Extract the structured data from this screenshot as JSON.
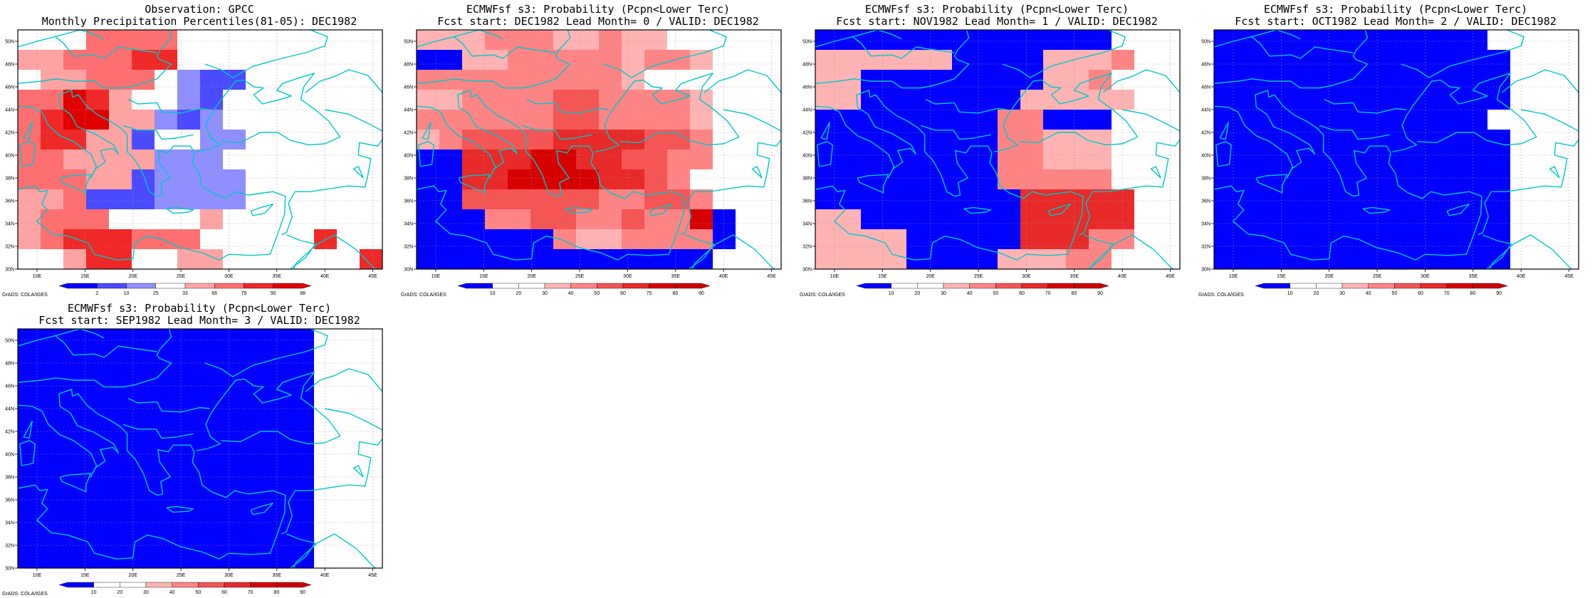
{
  "palette": {
    "obs": [
      "#0000ff",
      "#4a4aff",
      "#8f8fff",
      "#ffffff",
      "#ffa3a3",
      "#ff6f6f",
      "#f02828",
      "#e00000"
    ],
    "prob": [
      "#0000ff",
      "#ffffff",
      "#ffffff",
      "#ffb3b3",
      "#ff8585",
      "#f55555",
      "#e82a2a",
      "#d70000",
      "#cc0000"
    ],
    "coast": "#00c8c8"
  },
  "lon_labels": [
    "10E",
    "15E",
    "20E",
    "25E",
    "30E",
    "35E",
    "40E",
    "45E"
  ],
  "lat_labels": [
    "30N",
    "32N",
    "34N",
    "36N",
    "38N",
    "40N",
    "42N",
    "44N",
    "46N",
    "48N",
    "50N"
  ],
  "credit": "GrADS: COLA/IGES",
  "panels": [
    {
      "title1": "Observation: GPCC",
      "title2": "Monthly Precipitation Percentiles(81-05): DEC1982",
      "scale": "obs",
      "cb_labels": [
        "2",
        "10",
        "25",
        "33",
        "66",
        "75",
        "90",
        "98"
      ],
      "grid": [
        "33355553",
        "4455566",
        "3445553211",
        "557643321",
        "567744212",
        "5664413322",
        "554444222",
        "5554412222",
        "4451112222",
        "4555333343",
        "45666555333336",
        "3346633443333336"
      ]
    },
    {
      "title1": "ECMWFsf s3: Probability (Pcpn<Lower Terc)",
      "title2": "Fcst start: DEC1982  Lead Month= 0 / VALID: DEC1982",
      "scale": "prob",
      "cb_labels": [
        "10",
        "20",
        "30",
        "40",
        "50",
        "60",
        "70",
        "80",
        "90"
      ],
      "grid": [
        "33344433433",
        "0033444443443",
        "4444444443",
        "3344445544443",
        "4444445544443",
        "3455556666554",
        "0066677665544",
        "006677776654",
        "0055555544554",
        "00044554454470",
        "00000043344440",
        "0000000000000"
      ]
    },
    {
      "title1": "ECMWFsf s3: Probability (Pcpn<Lower Terc)",
      "title2": "Fcst start: NOV1982  Lead Month= 1 / VALID: DEC1982",
      "scale": "prob",
      "cb_labels": [
        "10",
        "20",
        "30",
        "40",
        "50",
        "60",
        "70",
        "80",
        "90"
      ],
      "grid": [
        "0000000000000",
        "33333300003334",
        "3300000000334",
        "33000000033333",
        "0000000044000",
        "0000000044333",
        "0000000044333",
        "0000000044444",
        "00000000066666",
        "33000000066666",
        "33330000066644",
        "3333000033344"
      ]
    },
    {
      "title1": "ECMWFsf s3: Probability (Pcpn<Lower Terc)",
      "title2": "Fcst start: OCT1982  Lead Month= 2 / VALID: DEC1982",
      "scale": "prob",
      "cb_labels": [
        "10",
        "20",
        "30",
        "40",
        "50",
        "60",
        "70",
        "80",
        "90"
      ],
      "grid": [
        "000000000000",
        "0000000000000",
        "0000000000000",
        "0000000000000",
        "000000000000",
        "0000000000000",
        "0000000000000",
        "0000000000000",
        "0000000000000",
        "0000000000000",
        "0000000000000",
        "0000000000000"
      ]
    },
    {
      "title1": "ECMWFsf s3: Probability (Pcpn<Lower Terc)",
      "title2": "Fcst start: SEP1982  Lead Month= 3 / VALID: DEC1982",
      "scale": "prob",
      "cb_labels": [
        "10",
        "20",
        "30",
        "40",
        "50",
        "60",
        "70",
        "80",
        "90"
      ],
      "grid": [
        "0000000000000",
        "0000000000000",
        "0000000000000",
        "0000000000000",
        "0000000000000",
        "0000000000000",
        "0000000000000",
        "0000000000000",
        "0000000000000",
        "0000000000000",
        "0000000000000",
        "0000000000000"
      ]
    }
  ]
}
